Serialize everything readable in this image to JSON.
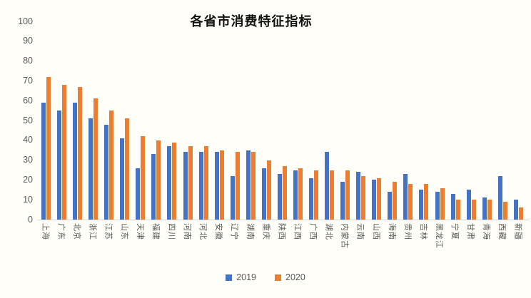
{
  "title": "各省市消费特征指标",
  "chart_data": {
    "type": "bar",
    "title": "各省市消费特征指标",
    "xlabel": "",
    "ylabel": "",
    "ylim": [
      0,
      100
    ],
    "yticks": [
      0,
      10,
      20,
      30,
      40,
      50,
      60,
      70,
      80,
      90,
      100
    ],
    "grid": false,
    "legend_position": "bottom-center",
    "background_color": "#FFFEF9",
    "axis_line_color": "#D9D9D9",
    "text_color": "#595959",
    "categories": [
      "上海",
      "广东",
      "北京",
      "浙江",
      "江苏",
      "山东",
      "天津",
      "福建",
      "四川",
      "河南",
      "河北",
      "安徽",
      "辽宁",
      "湖南",
      "重庆",
      "陕西",
      "江西",
      "广西",
      "湖北",
      "内蒙古",
      "云南",
      "山西",
      "海南",
      "贵州",
      "吉林",
      "黑龙江",
      "宁夏",
      "甘肃",
      "青海",
      "西藏",
      "新疆"
    ],
    "series": [
      {
        "name": "2019",
        "color": "#4472C4",
        "values": [
          59,
          55,
          59,
          51,
          48,
          41,
          26,
          33,
          37,
          34,
          34,
          34,
          22,
          35,
          26,
          23,
          25,
          21,
          34,
          19,
          24,
          20,
          14,
          23,
          15,
          14,
          13,
          15,
          11,
          22,
          10
        ]
      },
      {
        "name": "2020",
        "color": "#ED7D31",
        "values": [
          72,
          68,
          67,
          61,
          55,
          51,
          42,
          40,
          39,
          37,
          37,
          35,
          34,
          34,
          30,
          27,
          26,
          25,
          25,
          25,
          22,
          21,
          19,
          18,
          18,
          16,
          10,
          10,
          10,
          9,
          6
        ]
      }
    ]
  }
}
